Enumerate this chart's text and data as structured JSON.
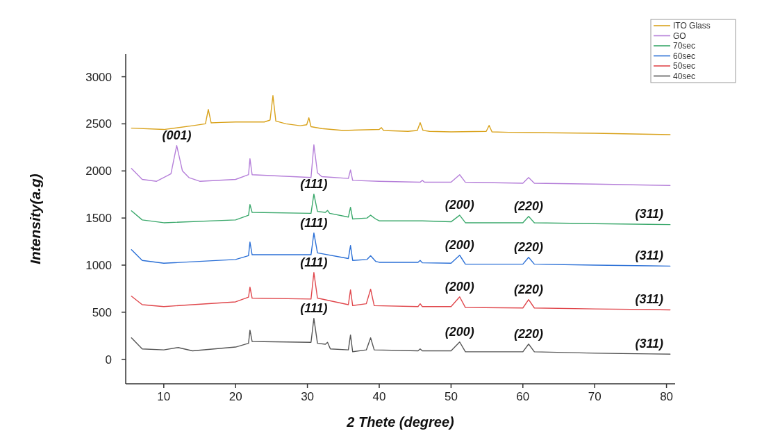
{
  "chart_data": {
    "type": "line",
    "xlabel": "2 Thete (degree)",
    "ylabel": "Intensity(a.g)",
    "xlim": [
      4.7,
      81.2
    ],
    "ylim": [
      -260,
      3240
    ],
    "xticks": [
      10,
      20,
      30,
      40,
      50,
      60,
      70,
      80
    ],
    "yticks": [
      0,
      500,
      1000,
      1500,
      2000,
      2500,
      3000
    ],
    "grid": false,
    "legend": "top right",
    "marker": "none",
    "line_style": "solid",
    "series": [
      {
        "name": "ITO Glass",
        "color": "#d9a21b",
        "x": [
          5.5,
          10,
          14,
          15.8,
          16.2,
          16.6,
          18,
          20,
          24,
          24.8,
          25.2,
          25.6,
          27,
          29,
          29.9,
          30.2,
          30.5,
          32,
          35,
          40,
          40.3,
          40.6,
          44,
          45.3,
          45.7,
          46.1,
          47,
          50,
          54.9,
          55.3,
          55.7,
          58,
          70,
          80.5
        ],
        "values": [
          2454,
          2440,
          2480,
          2500,
          2653,
          2510,
          2515,
          2520,
          2520,
          2540,
          2800,
          2530,
          2500,
          2480,
          2490,
          2565,
          2470,
          2450,
          2430,
          2440,
          2460,
          2430,
          2420,
          2430,
          2513,
          2430,
          2420,
          2415,
          2420,
          2483,
          2415,
          2410,
          2400,
          2385
        ]
      },
      {
        "name": "GO",
        "color": "#b57fd9",
        "x": [
          5.5,
          7,
          9,
          11,
          11.8,
          12.6,
          13.5,
          15,
          20,
          21.8,
          22,
          22.3,
          28,
          30.5,
          30.9,
          31.4,
          32,
          35.7,
          36,
          36.3,
          40,
          45.7,
          46,
          46.3,
          50,
          51.2,
          52,
          60,
          60.8,
          61.6,
          70,
          80.5
        ],
        "values": [
          2026,
          1910,
          1890,
          1970,
          2270,
          2000,
          1930,
          1890,
          1910,
          1960,
          2130,
          1960,
          1940,
          1930,
          2277,
          1980,
          1940,
          1920,
          2010,
          1900,
          1890,
          1880,
          1900,
          1880,
          1880,
          1960,
          1880,
          1870,
          1930,
          1870,
          1860,
          1845
        ]
      },
      {
        "name": "70sec",
        "color": "#3aa86b",
        "x": [
          5.5,
          7,
          10,
          20,
          21.8,
          22,
          22.3,
          30.5,
          30.9,
          31.4,
          32.5,
          32.8,
          33.1,
          35.7,
          36,
          36.3,
          38.3,
          38.8,
          39.5,
          40,
          46,
          50,
          51.2,
          52,
          60,
          60.8,
          61.6,
          70,
          77.6,
          80.5
        ],
        "values": [
          1577,
          1480,
          1450,
          1480,
          1530,
          1643,
          1560,
          1550,
          1754,
          1570,
          1560,
          1580,
          1550,
          1510,
          1614,
          1490,
          1500,
          1530,
          1490,
          1470,
          1470,
          1460,
          1530,
          1450,
          1450,
          1518,
          1450,
          1440,
          1433,
          1430
        ]
      },
      {
        "name": "60sec",
        "color": "#2a6fd6",
        "x": [
          5.5,
          7,
          10,
          20,
          21.8,
          22,
          22.3,
          30.5,
          30.9,
          31.4,
          35.7,
          36,
          36.3,
          38.3,
          38.8,
          39.5,
          40,
          45.4,
          45.7,
          46,
          50,
          51.2,
          52,
          60,
          60.8,
          61.6,
          70,
          77.6,
          80.5
        ],
        "values": [
          1164,
          1050,
          1020,
          1060,
          1100,
          1245,
          1110,
          1110,
          1341,
          1130,
          1070,
          1208,
          1050,
          1060,
          1100,
          1040,
          1030,
          1030,
          1050,
          1025,
          1020,
          1105,
          1010,
          1010,
          1083,
          1010,
          1000,
          993,
          990
        ]
      },
      {
        "name": "50sec",
        "color": "#e0474c",
        "x": [
          5.5,
          7,
          10,
          20,
          21.8,
          22,
          22.3,
          30.5,
          30.9,
          31.4,
          35.7,
          36,
          36.3,
          38.2,
          38.8,
          39.3,
          45.4,
          45.7,
          46,
          50,
          51.2,
          52,
          60,
          60.8,
          61.6,
          70,
          77.6,
          80.5
        ],
        "values": [
          670,
          580,
          560,
          610,
          660,
          766,
          650,
          640,
          921,
          650,
          580,
          737,
          570,
          590,
          744,
          570,
          560,
          590,
          560,
          560,
          663,
          550,
          545,
          634,
          545,
          535,
          528,
          525
        ]
      },
      {
        "name": "40sec",
        "color": "#555555",
        "x": [
          5.5,
          7,
          10,
          12,
          14,
          20,
          21.8,
          22,
          22.3,
          30.5,
          30.9,
          31.4,
          32.5,
          32.8,
          33.2,
          35.7,
          36,
          36.3,
          38.2,
          38.8,
          39.3,
          45.4,
          45.7,
          46,
          50,
          51.2,
          52,
          60,
          60.8,
          61.6,
          70,
          77.6,
          80.5
        ],
        "values": [
          228,
          110,
          100,
          125,
          90,
          130,
          170,
          310,
          190,
          180,
          435,
          170,
          160,
          180,
          110,
          100,
          258,
          80,
          100,
          228,
          100,
          90,
          110,
          90,
          90,
          184,
          80,
          80,
          162,
          80,
          65,
          58,
          55
        ]
      }
    ],
    "annotations": [
      {
        "text": "(001)",
        "x": 11.8,
        "y": 2270
      },
      {
        "text": "(111)",
        "x": 30.9,
        "y": 1754
      },
      {
        "text": "(111)",
        "x": 30.9,
        "y": 1341
      },
      {
        "text": "(111)",
        "x": 30.9,
        "y": 921
      },
      {
        "text": "(111)",
        "x": 30.9,
        "y": 435
      },
      {
        "text": "(200)",
        "x": 51.2,
        "y": 1530
      },
      {
        "text": "(200)",
        "x": 51.2,
        "y": 1105
      },
      {
        "text": "(200)",
        "x": 51.2,
        "y": 663
      },
      {
        "text": "(200)",
        "x": 51.2,
        "y": 184
      },
      {
        "text": "(220)",
        "x": 60.8,
        "y": 1518
      },
      {
        "text": "(220)",
        "x": 60.8,
        "y": 1083
      },
      {
        "text": "(220)",
        "x": 60.8,
        "y": 634
      },
      {
        "text": "(220)",
        "x": 60.8,
        "y": 162
      },
      {
        "text": "(311)",
        "x": 77.6,
        "y": 1433
      },
      {
        "text": "(311)",
        "x": 77.6,
        "y": 993
      },
      {
        "text": "(311)",
        "x": 77.6,
        "y": 528
      },
      {
        "text": "(311)",
        "x": 77.6,
        "y": 58
      }
    ]
  }
}
